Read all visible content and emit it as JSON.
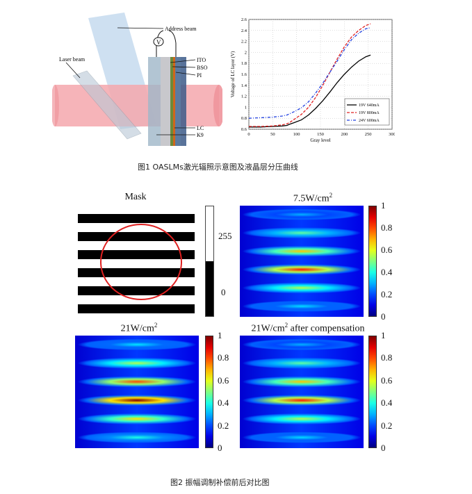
{
  "figure1": {
    "schematic": {
      "labels": {
        "address_beam": "Address beam",
        "laser_beam": "Laser beam",
        "ito": "ITO",
        "bso": "BSO",
        "pi": "PI",
        "lc": "LC",
        "k9": "K9",
        "voltage_symbol": "V"
      }
    },
    "chart_data": {
      "type": "line",
      "xlabel": "Gray level",
      "ylabel": "Voltage of LC layer (V)",
      "xlim": [
        0,
        300
      ],
      "ylim": [
        0.6,
        2.6
      ],
      "xticks": [
        "0",
        "50",
        "100",
        "150",
        "200",
        "250",
        "300"
      ],
      "yticks": [
        "0.6",
        "0.8",
        "1",
        "1.2",
        "1.4",
        "1.6",
        "1.8",
        "2",
        "2.2",
        "2.4",
        "2.6"
      ],
      "grid": true,
      "legend_position": "lower-right",
      "x": [
        0,
        25,
        50,
        70,
        80,
        85,
        95,
        110,
        125,
        140,
        155,
        170,
        185,
        200,
        215,
        230,
        245,
        255
      ],
      "series": [
        {
          "name": "19V 640mA",
          "color": "#000000",
          "dash": "solid",
          "values": [
            0.64,
            0.64,
            0.65,
            0.66,
            0.67,
            0.69,
            0.72,
            0.77,
            0.86,
            0.98,
            1.12,
            1.28,
            1.45,
            1.6,
            1.73,
            1.84,
            1.92,
            1.95
          ]
        },
        {
          "name": "19V 800mA",
          "color": "#e02020",
          "dash": "dashed",
          "values": [
            0.65,
            0.65,
            0.66,
            0.68,
            0.7,
            0.72,
            0.78,
            0.87,
            1.0,
            1.18,
            1.4,
            1.64,
            1.88,
            2.1,
            2.28,
            2.4,
            2.49,
            2.52
          ]
        },
        {
          "name": "24V 600mA",
          "color": "#1f3fe0",
          "dash": "dashdot",
          "values": [
            0.8,
            0.81,
            0.82,
            0.84,
            0.86,
            0.88,
            0.92,
            0.99,
            1.1,
            1.26,
            1.44,
            1.64,
            1.84,
            2.05,
            2.23,
            2.35,
            2.43,
            2.45
          ]
        }
      ]
    },
    "caption": "图1 OASLMs激光辐照示意图及液晶层分压曲线"
  },
  "figure2": {
    "panels": [
      {
        "title": "Mask",
        "colorbar_ticks": [
          "255",
          "0"
        ]
      },
      {
        "title_main": "7.5W/cm",
        "title_sup": "2",
        "title_tail": "",
        "colorbar_ticks": [
          "1",
          "0.8",
          "0.6",
          "0.4",
          "0.2",
          "0"
        ]
      },
      {
        "title_main": "21W/cm",
        "title_sup": "2",
        "title_tail": "",
        "colorbar_ticks": [
          "1",
          "0.8",
          "0.6",
          "0.4",
          "0.2",
          "0"
        ]
      },
      {
        "title_main": "21W/cm",
        "title_sup": "2",
        "title_tail": " after compensation",
        "colorbar_ticks": [
          "1",
          "0.8",
          "0.6",
          "0.4",
          "0.2",
          "0"
        ]
      }
    ],
    "colors": {
      "jet_low": "#00008f",
      "jet_high": "#800000"
    },
    "caption": "图2 振幅调制补偿前后对比图"
  }
}
